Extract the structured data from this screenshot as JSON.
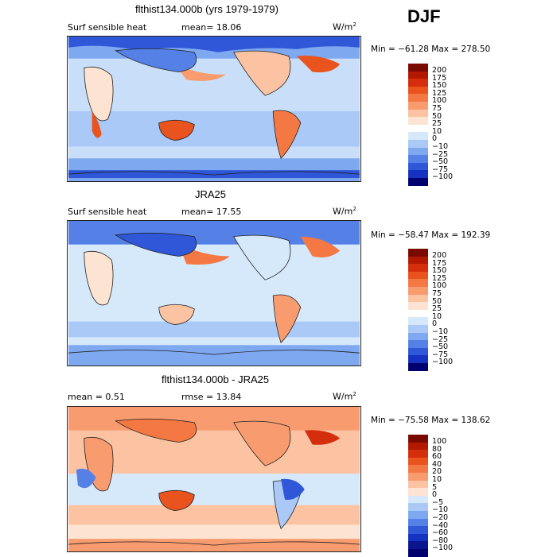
{
  "season": "DJF",
  "units_base": "W/m",
  "units_exp": "2",
  "panels": [
    {
      "title": "flthist134.000b (yrs 1979-1979)",
      "left_label": "Surf sensible heat",
      "stat_text": "mean=  18.06",
      "minmax": "Min = −61.28 Max = 278.50",
      "levels": [
        "200",
        "175",
        "150",
        "125",
        "100",
        "75",
        "50",
        "25",
        "10",
        "0",
        "−10",
        "−25",
        "−50",
        "−75",
        "−100"
      ]
    },
    {
      "title": "JRA25",
      "left_label": "Surf sensible heat",
      "stat_text": "mean=  17.55",
      "minmax": "Min = −58.47 Max = 192.39",
      "levels": [
        "200",
        "175",
        "150",
        "125",
        "100",
        "75",
        "50",
        "25",
        "10",
        "0",
        "−10",
        "−25",
        "−50",
        "−75",
        "−100"
      ]
    },
    {
      "title": "flthist134.000b - JRA25",
      "left_label": "mean =   0.51",
      "stat_text": "rmse =  13.84",
      "minmax": "Min = −75.58 Max = 138.62",
      "levels": [
        "100",
        "80",
        "60",
        "40",
        "20",
        "10",
        "5",
        "0",
        "−5",
        "−10",
        "−20",
        "−40",
        "−60",
        "−80",
        "−100"
      ]
    }
  ],
  "colors": {
    "palette": [
      "#7a0a00",
      "#b31800",
      "#d52e0c",
      "#e8531e",
      "#f47844",
      "#f89c70",
      "#fbc3a2",
      "#fde4d2",
      "#d6e9fb",
      "#aac9f6",
      "#7ea8ef",
      "#5580e6",
      "#2f57d8",
      "#1532c0",
      "#0a1690",
      "#00006e"
    ],
    "ocean": "#c9dff9",
    "land_outline": "#222222"
  }
}
